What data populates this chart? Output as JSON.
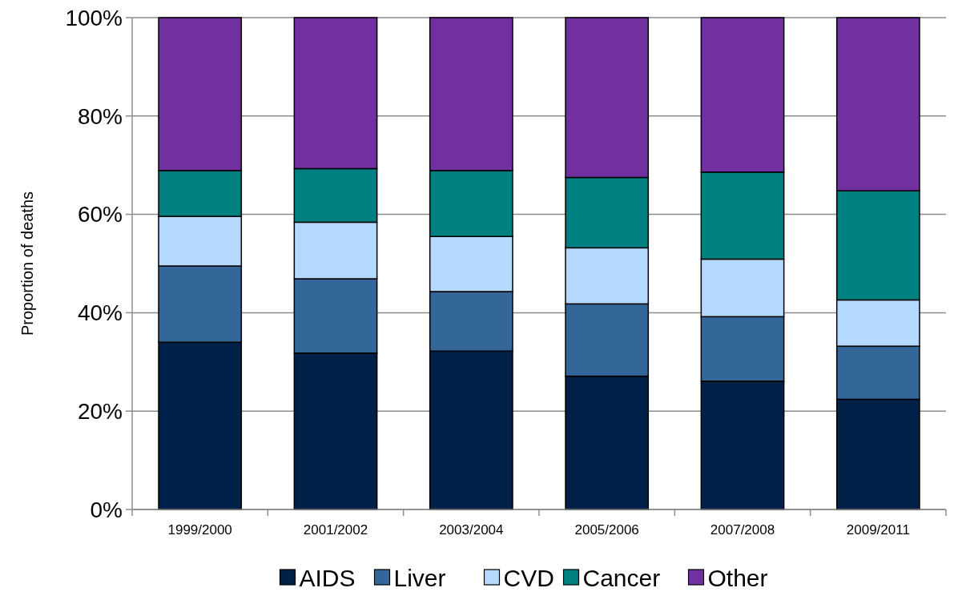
{
  "chart_data": {
    "type": "bar",
    "stacked": true,
    "ylabel": "Proportion of deaths",
    "categories": [
      "1999/2000",
      "2001/2002",
      "2003/2004",
      "2005/2006",
      "2007/2008",
      "2009/2011"
    ],
    "series": [
      {
        "name": "AIDS",
        "color": "#002147",
        "values": [
          34.0,
          31.8,
          32.2,
          27.1,
          26.1,
          22.4
        ]
      },
      {
        "name": "Liver",
        "color": "#336699",
        "values": [
          15.5,
          15.1,
          12.1,
          14.7,
          13.1,
          10.8
        ]
      },
      {
        "name": "CVD",
        "color": "#b3d9ff",
        "values": [
          10.1,
          11.5,
          11.2,
          11.4,
          11.7,
          9.4
        ]
      },
      {
        "name": "Cancer",
        "color": "#008080",
        "values": [
          9.3,
          10.9,
          13.4,
          14.3,
          17.7,
          22.2
        ]
      },
      {
        "name": "Other",
        "color": "#7030a0",
        "values": [
          31.1,
          30.7,
          31.1,
          32.5,
          31.4,
          35.2
        ]
      }
    ],
    "ylim": [
      0,
      100
    ],
    "yticks": [
      {
        "value": 0,
        "label": "0%"
      },
      {
        "value": 20,
        "label": "20%"
      },
      {
        "value": 40,
        "label": "40%"
      },
      {
        "value": 60,
        "label": "60%"
      },
      {
        "value": 80,
        "label": "80%"
      },
      {
        "value": 100,
        "label": "100%"
      }
    ],
    "grid": "y",
    "legend": "bottom"
  }
}
